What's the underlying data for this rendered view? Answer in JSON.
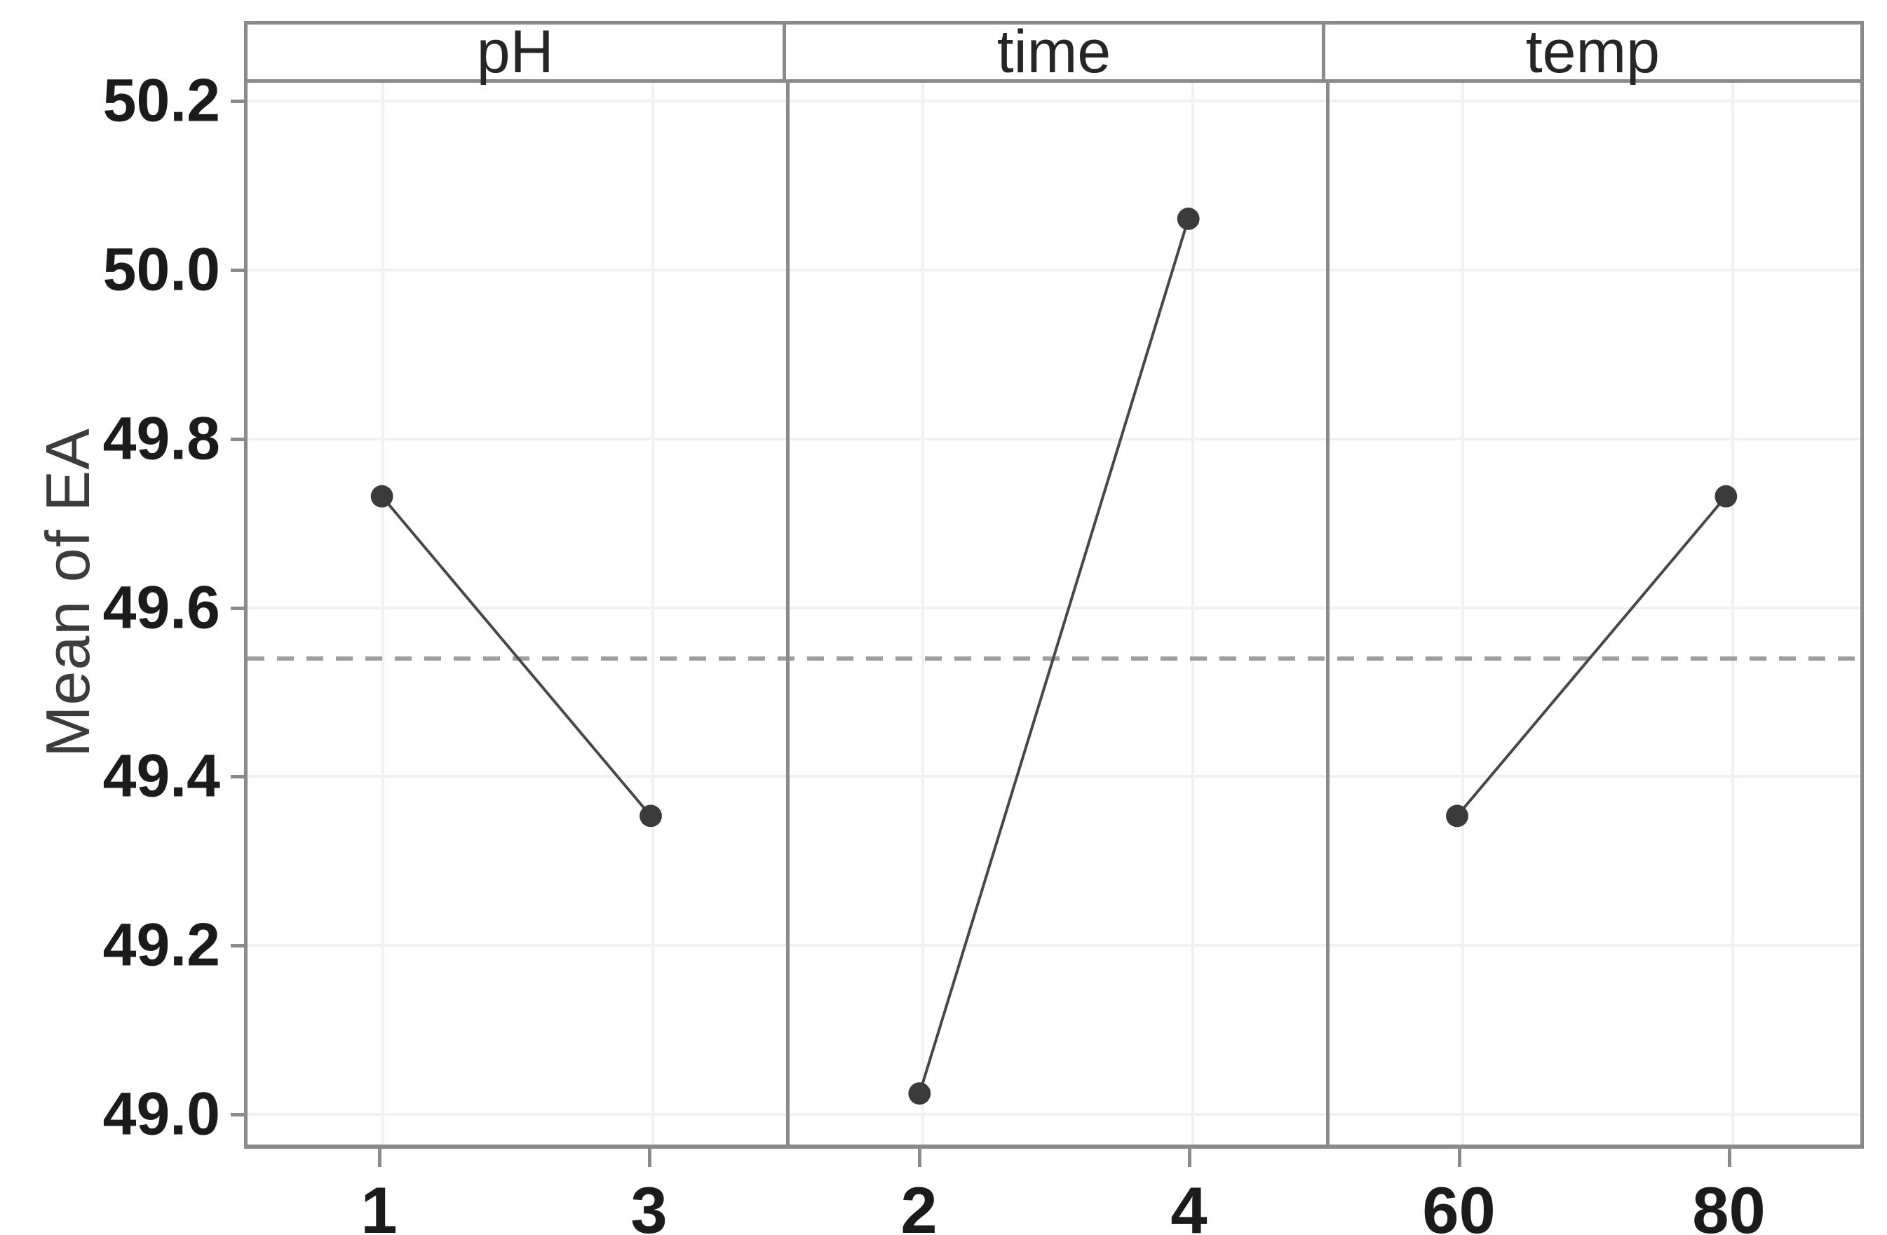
{
  "figure": {
    "background": "#ffffff"
  },
  "chart_data": {
    "type": "line",
    "title": "",
    "ylabel": "Mean of EA",
    "xlabel": "",
    "grid": "both",
    "legend": "none",
    "ylim": [
      48.96,
      50.22
    ],
    "y_ticks": [
      "50.2",
      "50.0",
      "49.8",
      "49.6",
      "49.4",
      "49.2",
      "49.0"
    ],
    "y_tick_values": [
      50.2,
      50.0,
      49.8,
      49.6,
      49.4,
      49.2,
      49.0
    ],
    "reference_mean": 49.54,
    "panels": [
      {
        "label": "pH",
        "categories": [
          "1",
          "3"
        ],
        "values": [
          49.73,
          49.35
        ]
      },
      {
        "label": "time",
        "categories": [
          "2",
          "4"
        ],
        "values": [
          49.02,
          50.06
        ]
      },
      {
        "label": "temp",
        "categories": [
          "60",
          "80"
        ],
        "values": [
          49.35,
          49.73
        ]
      }
    ],
    "colors": {
      "marker": "#3b3b3b",
      "line": "#474747",
      "border": "#8a8a8a",
      "gridline": "#f1f1f1",
      "mean_line": "#9e9e9e",
      "tick_text": "#1b1b1b",
      "axis_title_text": "#3c3c3c"
    }
  }
}
